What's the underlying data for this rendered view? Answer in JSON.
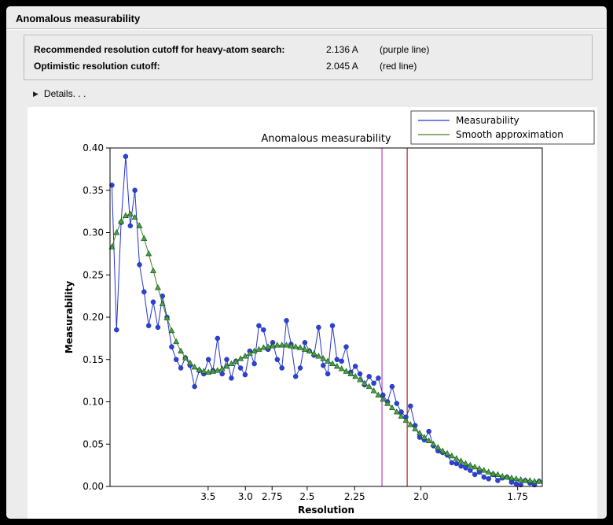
{
  "window": {
    "title": "Anomalous measurability"
  },
  "info": {
    "rows": [
      {
        "label": "Recommended resolution cutoff for heavy-atom search:",
        "value": "2.136 A",
        "note": "(purple line)"
      },
      {
        "label": "Optimistic resolution cutoff:",
        "value": "2.045 A",
        "note": "(red line)"
      }
    ]
  },
  "details": {
    "label": "Details. . ."
  },
  "chart_data": {
    "type": "line",
    "title": "Anomalous measurability",
    "xlabel": "Resolution",
    "ylabel": "Measurability",
    "x_scale": "1/d^2 (resolution in Angstrom, higher resolution to the right)",
    "xlim_inv_d2": [
      0.004,
      0.346
    ],
    "ylim": [
      0.0,
      0.4
    ],
    "yticks": [
      0.0,
      0.05,
      0.1,
      0.15,
      0.2,
      0.25,
      0.3,
      0.35,
      0.4
    ],
    "xticks_resolution": [
      "3.5",
      "3.0",
      "2.75",
      "2.5",
      "2.25",
      "2.0",
      "1.75"
    ],
    "x_first_inv_d2": 0.0055,
    "x_last_inv_d2": 0.3435,
    "grid": false,
    "legend": {
      "position": "upper right",
      "entries": [
        "Measurability",
        "Smooth approximation"
      ]
    },
    "series": [
      {
        "name": "Measurability",
        "color": "#2433cc",
        "marker": "circle",
        "marker_color": "#2b43d4",
        "marker_edge": "#18249a",
        "values": [
          0.356,
          0.185,
          0.312,
          0.39,
          0.308,
          0.35,
          0.262,
          0.23,
          0.19,
          0.218,
          0.188,
          0.225,
          0.2,
          0.165,
          0.15,
          0.14,
          0.152,
          0.143,
          0.118,
          0.137,
          0.133,
          0.15,
          0.137,
          0.175,
          0.133,
          0.15,
          0.128,
          0.148,
          0.14,
          0.132,
          0.16,
          0.145,
          0.19,
          0.185,
          0.162,
          0.17,
          0.15,
          0.14,
          0.196,
          0.168,
          0.13,
          0.14,
          0.17,
          0.16,
          0.155,
          0.188,
          0.143,
          0.133,
          0.19,
          0.15,
          0.148,
          0.165,
          0.135,
          0.142,
          0.133,
          0.12,
          0.13,
          0.122,
          0.128,
          0.108,
          0.1,
          0.118,
          0.098,
          0.088,
          0.082,
          0.095,
          0.072,
          0.058,
          0.055,
          0.065,
          0.048,
          0.042,
          0.04,
          0.037,
          0.028,
          0.027,
          0.024,
          0.022,
          0.019,
          0.014,
          0.017,
          0.011,
          0.009,
          0.014,
          0.007,
          0.01,
          0.011,
          0.005,
          0.003,
          0.002,
          0.007,
          0.004,
          0.002,
          0.006
        ]
      },
      {
        "name": "Smooth approximation",
        "color": "#4a7c26",
        "marker": "triangle",
        "marker_color": "#46a546",
        "marker_edge": "#1c541c",
        "values": [
          0.283,
          0.3,
          0.313,
          0.32,
          0.322,
          0.318,
          0.308,
          0.293,
          0.275,
          0.255,
          0.235,
          0.216,
          0.199,
          0.184,
          0.171,
          0.16,
          0.152,
          0.146,
          0.141,
          0.138,
          0.136,
          0.135,
          0.136,
          0.137,
          0.139,
          0.142,
          0.145,
          0.148,
          0.151,
          0.154,
          0.157,
          0.16,
          0.162,
          0.164,
          0.165,
          0.166,
          0.167,
          0.167,
          0.167,
          0.166,
          0.165,
          0.164,
          0.162,
          0.16,
          0.157,
          0.154,
          0.151,
          0.148,
          0.145,
          0.142,
          0.139,
          0.136,
          0.133,
          0.13,
          0.126,
          0.122,
          0.118,
          0.113,
          0.108,
          0.103,
          0.098,
          0.093,
          0.088,
          0.083,
          0.078,
          0.073,
          0.068,
          0.063,
          0.058,
          0.054,
          0.05,
          0.046,
          0.042,
          0.039,
          0.036,
          0.033,
          0.03,
          0.027,
          0.025,
          0.023,
          0.021,
          0.019,
          0.017,
          0.015,
          0.014,
          0.012,
          0.011,
          0.01,
          0.009,
          0.008,
          0.007,
          0.007,
          0.006,
          0.006
        ]
      }
    ],
    "vlines": [
      {
        "name": "purple line",
        "resolution": 2.136,
        "color": "#c040c0"
      },
      {
        "name": "red line",
        "resolution": 2.045,
        "color": "#a62a1a"
      }
    ]
  }
}
